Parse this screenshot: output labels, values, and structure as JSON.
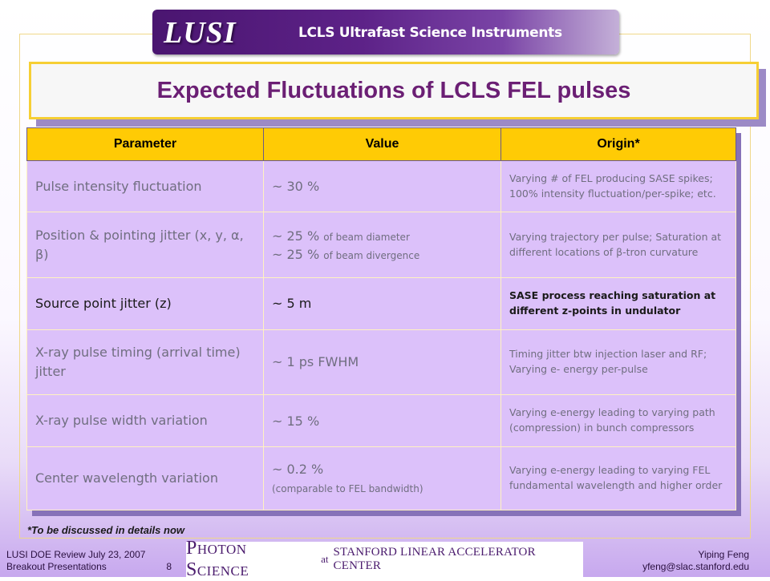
{
  "header": {
    "logo": "LUSI",
    "subtitle": "LCLS Ultrafast Science Instruments"
  },
  "slide": {
    "title": "Expected Fluctuations of LCLS FEL pulses"
  },
  "table": {
    "headers": [
      "Parameter",
      "Value",
      "Origin*"
    ],
    "rows": [
      {
        "param": [
          "Pulse intensity fluctuation"
        ],
        "value": [
          {
            "main": "~ 30 %",
            "small": ""
          }
        ],
        "origin": [
          "Varying # of FEL producing SASE spikes; 100% intensity fluctuation/per-spike; etc."
        ]
      },
      {
        "param": [
          "Position & pointing jitter (x, y, α, β)"
        ],
        "value": [
          {
            "main": "~ 25 %",
            "small": "of beam diameter"
          },
          {
            "main": "~ 25 %",
            "small": "of beam divergence"
          }
        ],
        "origin": [
          "Varying trajectory per pulse; Saturation at different locations of β-tron curvature"
        ]
      },
      {
        "param": [
          "Source point jitter (z)"
        ],
        "value": [
          {
            "main": "~ 5 m",
            "small": ""
          }
        ],
        "origin": [
          "SASE process reaching saturation at different z-points in undulator"
        ]
      },
      {
        "param": [
          "X-ray pulse timing (arrival time) jitter"
        ],
        "value": [
          {
            "main": "~ 1 ps FWHM",
            "small": ""
          }
        ],
        "origin": [
          "Timing jitter btw injection laser and RF; Varying e- energy per-pulse"
        ]
      },
      {
        "param": [
          "X-ray pulse width variation"
        ],
        "value": [
          {
            "main": "~ 15 %",
            "small": ""
          }
        ],
        "origin": [
          "Varying e-energy leading to varying path (compression) in bunch compressors"
        ]
      },
      {
        "param": [
          "Center wavelength variation"
        ],
        "value": [
          {
            "main": "~ 0.2 %",
            "small": ""
          },
          {
            "main": "",
            "small": "(comparable to FEL bandwidth)"
          }
        ],
        "origin": [
          "Varying e-energy leading to varying FEL fundamental wavelength and higher order"
        ]
      }
    ]
  },
  "note": "*To be discussed in details now",
  "footer": {
    "left_line1": "LUSI DOE Review  July 23, 2007",
    "left_line2": "Breakout Presentations",
    "page_number": "8",
    "center_main": "Photon Science",
    "center_at": "at",
    "center_org": "STANFORD LINEAR ACCELERATOR CENTER",
    "right_name": "Yiping Feng",
    "right_email": "yfeng@slac.stanford.edu"
  }
}
